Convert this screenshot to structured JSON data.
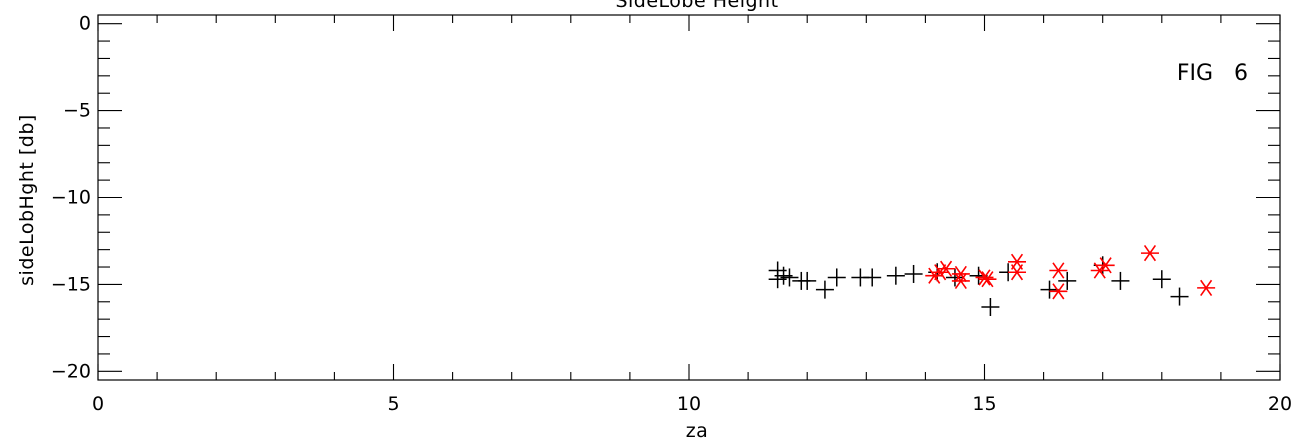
{
  "chart_data": {
    "type": "scatter",
    "title": "SideLobe Height",
    "xlabel": "za",
    "ylabel": "sideLobHght [db]",
    "annotation": "FIG   6",
    "xlim": [
      0,
      20
    ],
    "ylim": [
      -20.5,
      0.5
    ],
    "xticks": [
      0,
      5,
      10,
      15,
      20
    ],
    "xtick_labels": [
      "0",
      "5",
      "10",
      "15",
      "20"
    ],
    "yticks": [
      0,
      -5,
      -10,
      -15,
      -20
    ],
    "ytick_labels": [
      "0",
      "−5",
      "−10",
      "−15",
      "−20"
    ],
    "grid": false,
    "series": [
      {
        "marker": "plus",
        "color": "#000000",
        "points": [
          [
            11.5,
            -14.7
          ],
          [
            11.5,
            -14.2
          ],
          [
            11.6,
            -14.5
          ],
          [
            11.7,
            -14.6
          ],
          [
            11.9,
            -14.8
          ],
          [
            12.0,
            -14.8
          ],
          [
            12.3,
            -15.3
          ],
          [
            12.5,
            -14.6
          ],
          [
            12.9,
            -14.6
          ],
          [
            13.1,
            -14.6
          ],
          [
            13.5,
            -14.5
          ],
          [
            13.8,
            -14.4
          ],
          [
            14.2,
            -14.3
          ],
          [
            14.5,
            -14.6
          ],
          [
            14.9,
            -14.5
          ],
          [
            15.1,
            -16.3
          ],
          [
            15.4,
            -14.3
          ],
          [
            16.1,
            -15.3
          ],
          [
            16.4,
            -14.8
          ],
          [
            17.0,
            -13.9
          ],
          [
            17.3,
            -14.8
          ],
          [
            18.0,
            -14.7
          ],
          [
            18.3,
            -15.7
          ]
        ]
      },
      {
        "marker": "asterisk",
        "color": "#ff0000",
        "points": [
          [
            14.15,
            -14.5
          ],
          [
            14.25,
            -14.3
          ],
          [
            14.35,
            -14.1
          ],
          [
            14.6,
            -14.8
          ],
          [
            14.6,
            -14.4
          ],
          [
            15.0,
            -14.6
          ],
          [
            15.05,
            -14.7
          ],
          [
            15.55,
            -14.3
          ],
          [
            15.55,
            -13.7
          ],
          [
            16.25,
            -15.4
          ],
          [
            16.25,
            -14.2
          ],
          [
            16.95,
            -14.2
          ],
          [
            17.05,
            -13.9
          ],
          [
            17.8,
            -13.2
          ],
          [
            18.75,
            -15.2
          ]
        ]
      }
    ]
  }
}
